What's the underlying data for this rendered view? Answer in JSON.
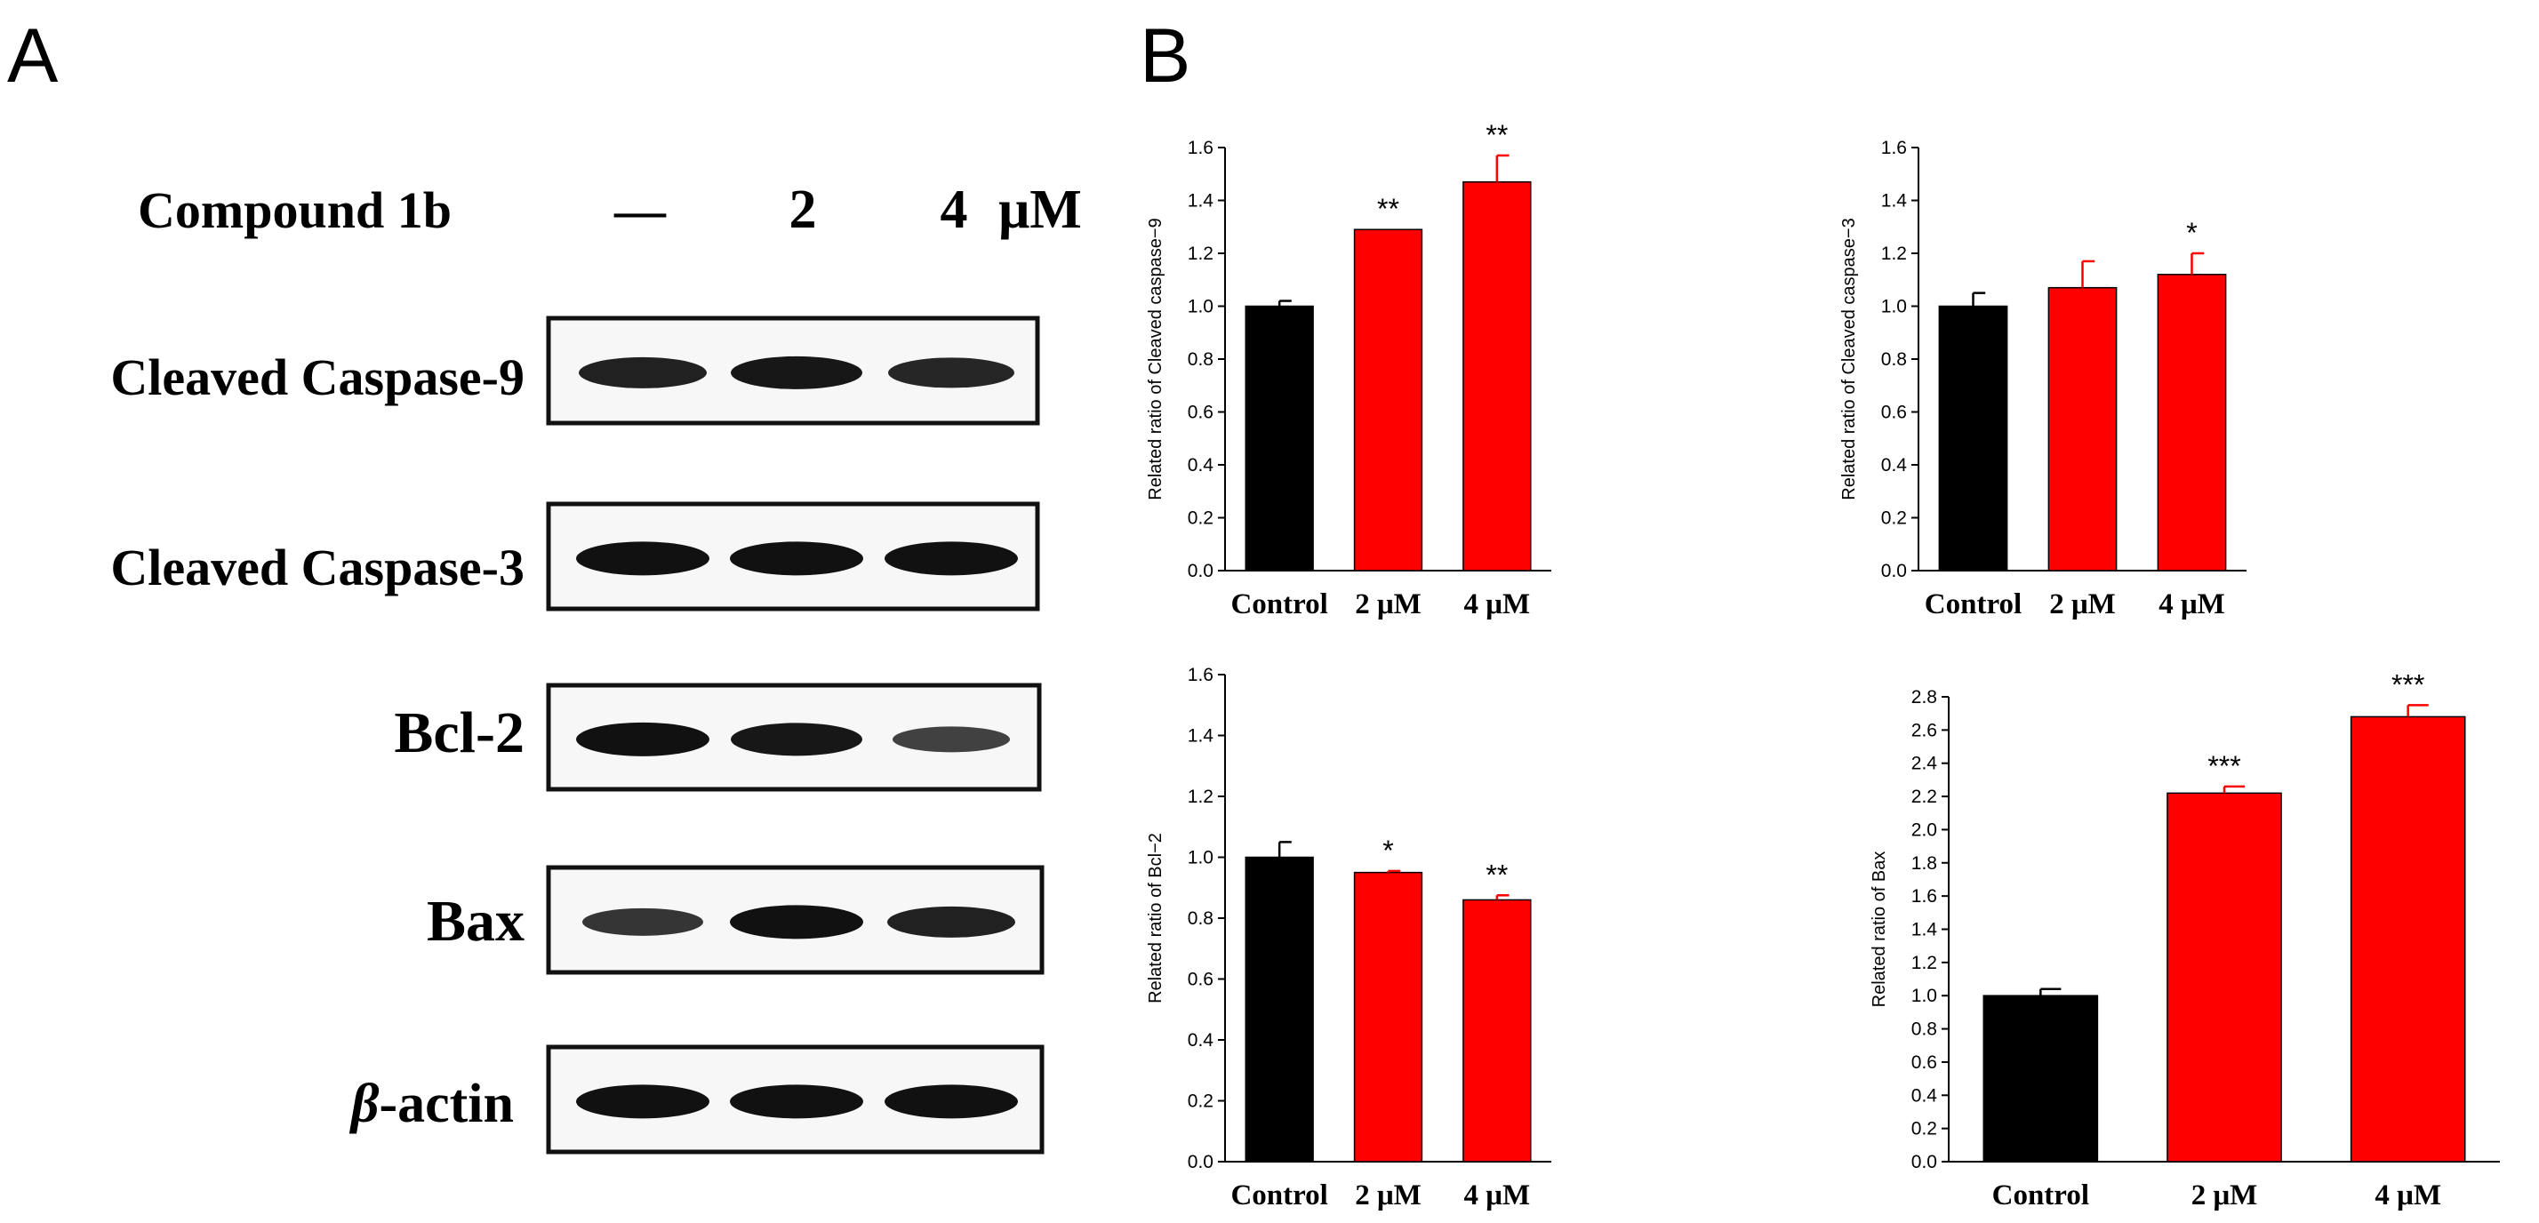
{
  "panel_a": {
    "label": "A",
    "treatment_label": "Compound 1b",
    "lane_labels": [
      "—",
      "2",
      "4",
      "μM"
    ],
    "blots": [
      {
        "label": "Cleaved Caspase-9",
        "intensities": [
          0.85,
          0.95,
          0.8
        ]
      },
      {
        "label": "Cleaved Caspase-3",
        "intensities": [
          1.0,
          1.0,
          1.0
        ]
      },
      {
        "label": "Bcl-2",
        "intensities": [
          1.0,
          0.95,
          0.55
        ]
      },
      {
        "label": "Bax",
        "intensities": [
          0.65,
          1.0,
          0.85
        ]
      },
      {
        "label_prefix": "β",
        "label_suffix": "-actin",
        "intensities": [
          1.0,
          1.0,
          1.0
        ]
      }
    ]
  },
  "panel_b": {
    "label": "B"
  },
  "colors": {
    "control": "#000000",
    "treated": "#ff0000",
    "text": "#000000"
  },
  "chart_data": [
    {
      "type": "bar",
      "categories": [
        "Control",
        "2 μM",
        "4 μM"
      ],
      "values": [
        1.0,
        1.29,
        1.47
      ],
      "errors": [
        0.02,
        0.0,
        0.1
      ],
      "significance": [
        "",
        "**",
        "**"
      ],
      "ylabel": "Related ratio of Cleaved caspase−9",
      "ylim": [
        0,
        1.6
      ],
      "yticks": [
        "0.0",
        "0.2",
        "0.4",
        "0.6",
        "0.8",
        "1.0",
        "1.2",
        "1.4",
        "1.6"
      ]
    },
    {
      "type": "bar",
      "categories": [
        "Control",
        "2 μM",
        "4 μM"
      ],
      "values": [
        1.0,
        1.07,
        1.12
      ],
      "errors": [
        0.05,
        0.1,
        0.08
      ],
      "significance": [
        "",
        "",
        "*"
      ],
      "ylabel": "Related ratio of Cleaved caspase−3",
      "ylim": [
        0,
        1.6
      ],
      "yticks": [
        "0.0",
        "0.2",
        "0.4",
        "0.6",
        "0.8",
        "1.0",
        "1.2",
        "1.4",
        "1.6"
      ]
    },
    {
      "type": "bar",
      "categories": [
        "Control",
        "2 μM",
        "4 μM"
      ],
      "values": [
        1.0,
        0.95,
        0.86
      ],
      "errors": [
        0.05,
        0.005,
        0.015
      ],
      "significance": [
        "",
        "*",
        "**"
      ],
      "ylabel": "Related ratio of Bcl−2",
      "ylim": [
        0,
        1.6
      ],
      "yticks": [
        "0.0",
        "0.2",
        "0.4",
        "0.6",
        "0.8",
        "1.0",
        "1.2",
        "1.4",
        "1.6"
      ]
    },
    {
      "type": "bar",
      "categories": [
        "Control",
        "2 μM",
        "4 μM"
      ],
      "values": [
        1.0,
        2.22,
        2.68
      ],
      "errors": [
        0.04,
        0.04,
        0.07
      ],
      "significance": [
        "",
        "***",
        "***"
      ],
      "ylabel": "Related ratio of Bax",
      "ylim": [
        0,
        2.8
      ],
      "yticks": [
        "0.0",
        "0.2",
        "0.4",
        "0.6",
        "0.8",
        "1.0",
        "1.2",
        "1.4",
        "1.6",
        "1.8",
        "2.0",
        "2.2",
        "2.4",
        "2.6",
        "2.8"
      ]
    }
  ]
}
